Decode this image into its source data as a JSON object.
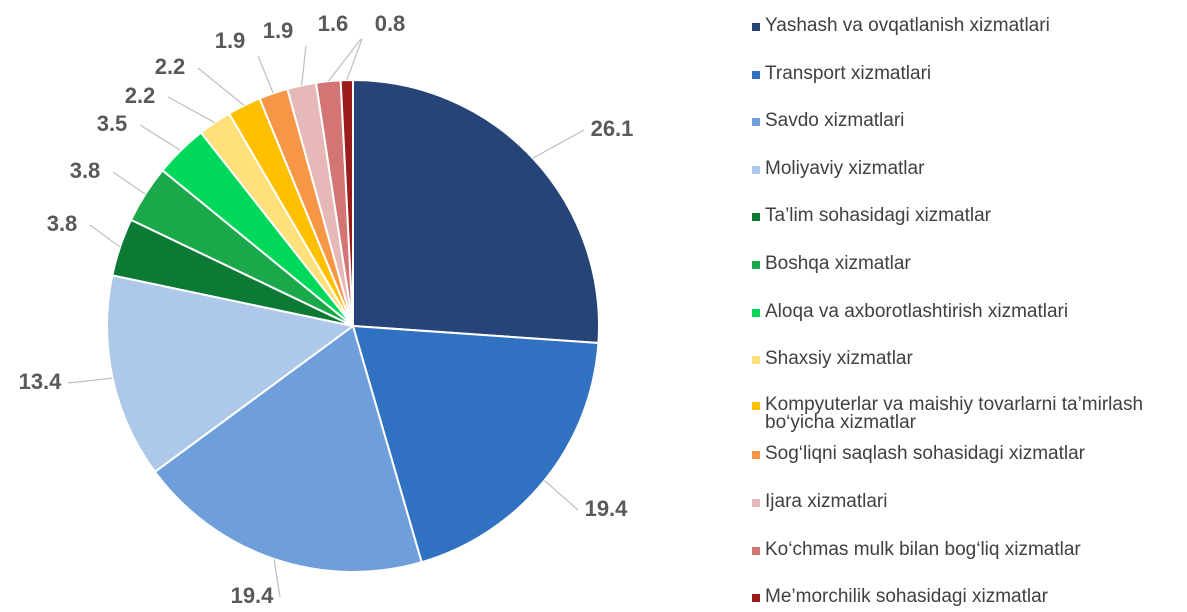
{
  "chart_data": {
    "type": "pie",
    "categories": [
      "Yashash va ovqatlanish xizmatlari",
      "Transport xizmatlari",
      "Savdo xizmatlari",
      "Moliyaviy xizmatlar",
      "Ta’lim sohasidagi xizmatlar",
      "Boshqa xizmatlar",
      "Aloqa va axborotlashtirish xizmatlari",
      "Shaxsiy xizmatlar",
      "Kompyuterlar va maishiy tovarlarni ta’mirlash bo‘yicha xizmatlar",
      "Sog‘liqni saqlash sohasidagi xizmatlar",
      "Ijara xizmatlari",
      "Ko‘chmas mulk bilan bog‘liq xizmatlar",
      "Me’morchilik sohasidagi xizmatlar"
    ],
    "values": [
      26.1,
      19.4,
      19.4,
      13.4,
      3.8,
      3.8,
      3.5,
      2.2,
      2.2,
      1.9,
      1.9,
      1.6,
      0.8
    ],
    "colors": [
      "#264478",
      "#3071c1",
      "#6f9fdb",
      "#aec8ea",
      "#0c7a34",
      "#1aa84a",
      "#00d85a",
      "#ffe07a",
      "#ffc000",
      "#f79646",
      "#e6b9b8",
      "#d47575",
      "#9b1c1c"
    ],
    "legend": "right"
  }
}
